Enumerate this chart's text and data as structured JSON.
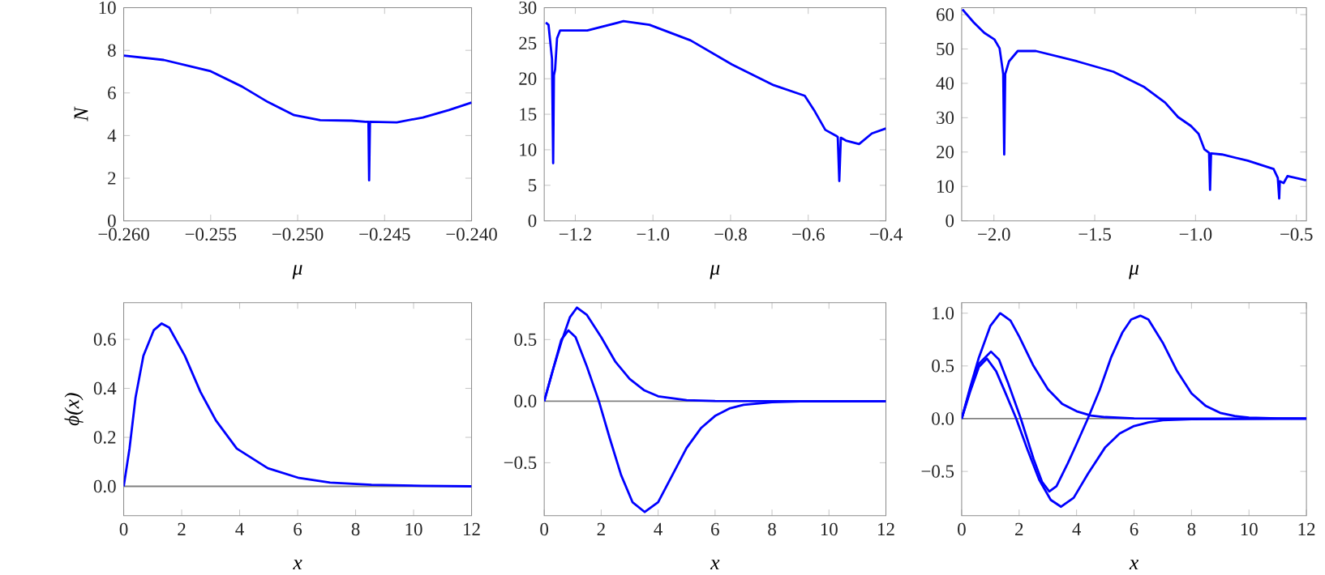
{
  "chart_data": [
    {
      "type": "line",
      "xlabel": "μ",
      "ylabel": "N",
      "xlim": [
        -0.26,
        -0.24
      ],
      "ylim": [
        0,
        10
      ],
      "xticks": [
        {
          "value": -0.26,
          "label": "−0.260"
        },
        {
          "value": -0.255,
          "label": "−0.255"
        },
        {
          "value": -0.25,
          "label": "−0.250"
        },
        {
          "value": -0.245,
          "label": "−0.245"
        },
        {
          "value": -0.24,
          "label": "−0.240"
        }
      ],
      "yticks": [
        0,
        2,
        4,
        6,
        8,
        10
      ],
      "series": [
        {
          "color": "#0000ff",
          "x": [
            -0.26,
            -0.2577,
            -0.255,
            -0.2532,
            -0.2517,
            -0.2502,
            -0.2487,
            -0.2469,
            -0.2461,
            -0.24593,
            -0.24589,
            -0.24584,
            -0.2443,
            -0.2428,
            -0.2413,
            -0.24
          ],
          "values": [
            7.75,
            7.55,
            7.02,
            6.3,
            5.57,
            4.96,
            4.72,
            4.7,
            4.65,
            4.65,
            1.9,
            4.65,
            4.62,
            4.85,
            5.2,
            5.55
          ]
        }
      ]
    },
    {
      "type": "line",
      "xlabel": "μ",
      "xlim": [
        -1.28,
        -0.4
      ],
      "ylim": [
        0,
        30
      ],
      "xticks": [
        {
          "value": -1.2,
          "label": "−1.2"
        },
        {
          "value": -1.0,
          "label": "−1.0"
        },
        {
          "value": -0.8,
          "label": "−0.8"
        },
        {
          "value": -0.6,
          "label": "−0.6"
        },
        {
          "value": -0.4,
          "label": "−0.4"
        }
      ],
      "yticks": [
        0,
        5,
        10,
        15,
        20,
        25,
        30
      ],
      "series": [
        {
          "color": "#0000ff",
          "x": [
            -1.276,
            -1.269,
            -1.26,
            -1.257,
            -1.255,
            -1.252,
            -1.247,
            -1.239,
            -1.169,
            -1.076,
            -1.009,
            -0.903,
            -0.796,
            -0.689,
            -0.609,
            -0.583,
            -0.556,
            -0.529,
            -0.524,
            -0.52,
            -0.516,
            -0.503,
            -0.469,
            -0.436,
            -0.4
          ],
          "values": [
            27.9,
            27.6,
            22.8,
            8.1,
            20.5,
            21.3,
            25.7,
            26.8,
            26.8,
            28.1,
            27.6,
            25.4,
            22.0,
            19.1,
            17.6,
            15.4,
            12.8,
            12.0,
            11.8,
            5.6,
            11.7,
            11.3,
            10.8,
            12.3,
            13.0
          ]
        }
      ]
    },
    {
      "type": "line",
      "xlabel": "μ",
      "xlim": [
        -2.16,
        -0.45
      ],
      "ylim": [
        0,
        62
      ],
      "xticks": [
        {
          "value": -2.0,
          "label": "−2.0"
        },
        {
          "value": -1.5,
          "label": "−1.5"
        },
        {
          "value": -1.0,
          "label": "−1.0"
        },
        {
          "value": -0.5,
          "label": "−0.5"
        }
      ],
      "yticks": [
        0,
        10,
        20,
        30,
        40,
        50,
        60
      ],
      "series": [
        {
          "color": "#0000ff",
          "x": [
            -2.156,
            -2.1,
            -2.048,
            -1.998,
            -1.972,
            -1.959,
            -1.954,
            -1.949,
            -1.944,
            -1.925,
            -1.882,
            -1.792,
            -1.587,
            -1.408,
            -1.254,
            -1.151,
            -1.087,
            -1.023,
            -0.985,
            -0.956,
            -0.933,
            -0.928,
            -0.923,
            -0.869,
            -0.741,
            -0.613,
            -0.592,
            -0.585,
            -0.582,
            -0.563,
            -0.544,
            -0.451
          ],
          "values": [
            61.5,
            57.7,
            54.7,
            52.8,
            50.2,
            44.9,
            42.7,
            19.3,
            42.7,
            46.4,
            49.4,
            49.4,
            46.4,
            43.4,
            38.9,
            34.4,
            30.2,
            27.6,
            25.3,
            20.8,
            19.8,
            9.0,
            19.6,
            19.3,
            17.5,
            15.1,
            12.5,
            6.5,
            11.5,
            11.0,
            13.0,
            11.8
          ]
        }
      ]
    },
    {
      "type": "line",
      "xlabel": "x",
      "ylabel": "ϕ(x)",
      "xlim": [
        0,
        12
      ],
      "ylim": [
        -0.12,
        0.75
      ],
      "xticks": [
        0,
        2,
        4,
        6,
        8,
        10,
        12
      ],
      "yticks": [
        {
          "value": 0,
          "label": "0.0"
        },
        {
          "value": 0.2,
          "label": "0.2"
        },
        {
          "value": 0.4,
          "label": "0.4"
        },
        {
          "value": 0.6,
          "label": "0.6"
        }
      ],
      "ref_lines": [
        {
          "axis": "y",
          "value": 0,
          "color": "#808080"
        }
      ],
      "series": [
        {
          "color": "#0000ff",
          "x": [
            0,
            0.2,
            0.41,
            0.68,
            1.04,
            1.31,
            1.57,
            2.11,
            2.65,
            3.18,
            3.9,
            4.97,
            6.05,
            7.12,
            8.55,
            10.3,
            12
          ],
          "values": [
            0,
            0.154,
            0.364,
            0.533,
            0.638,
            0.665,
            0.648,
            0.533,
            0.385,
            0.269,
            0.154,
            0.074,
            0.034,
            0.015,
            0.006,
            0.002,
            0
          ]
        }
      ]
    },
    {
      "type": "line",
      "xlabel": "x",
      "xlim": [
        0,
        12
      ],
      "ylim": [
        -0.93,
        0.8
      ],
      "xticks": [
        0,
        2,
        4,
        6,
        8,
        10,
        12
      ],
      "yticks": [
        {
          "value": -0.5,
          "label": "−0.5"
        },
        {
          "value": 0,
          "label": "0.0"
        },
        {
          "value": 0.5,
          "label": "0.5"
        }
      ],
      "ref_lines": [
        {
          "axis": "y",
          "value": 0,
          "color": "#808080"
        }
      ],
      "series": [
        {
          "color": "#0000ff",
          "x": [
            0,
            0.3,
            0.6,
            0.9,
            1.15,
            1.5,
            2.0,
            2.5,
            3.0,
            3.5,
            4.0,
            5.0,
            6.0,
            12
          ],
          "values": [
            0,
            0.25,
            0.48,
            0.68,
            0.76,
            0.7,
            0.52,
            0.32,
            0.18,
            0.09,
            0.04,
            0.008,
            0.001,
            0
          ]
        },
        {
          "color": "#0000ff",
          "x": [
            0,
            0.3,
            0.6,
            0.85,
            1.1,
            1.5,
            1.92,
            2.3,
            2.7,
            3.1,
            3.53,
            4.0,
            4.5,
            5.0,
            5.5,
            6.0,
            6.5,
            7,
            8,
            9,
            12
          ],
          "values": [
            0,
            0.25,
            0.5,
            0.575,
            0.52,
            0.28,
            0,
            -0.3,
            -0.6,
            -0.82,
            -0.9,
            -0.82,
            -0.6,
            -0.38,
            -0.22,
            -0.12,
            -0.06,
            -0.03,
            -0.008,
            -0.002,
            0
          ]
        }
      ]
    },
    {
      "type": "line",
      "xlabel": "x",
      "xlim": [
        0,
        12
      ],
      "ylim": [
        -0.92,
        1.1
      ],
      "xticks": [
        0,
        2,
        4,
        6,
        8,
        10,
        12
      ],
      "yticks": [
        {
          "value": -0.5,
          "label": "−0.5"
        },
        {
          "value": 0,
          "label": "0.0"
        },
        {
          "value": 0.5,
          "label": "0.5"
        },
        {
          "value": 1.0,
          "label": "1.0"
        }
      ],
      "ref_lines": [
        {
          "axis": "y",
          "value": 0,
          "color": "#808080"
        }
      ],
      "series": [
        {
          "color": "#0000ff",
          "x": [
            0,
            0.3,
            0.6,
            1.0,
            1.34,
            1.7,
            2.0,
            2.5,
            3.0,
            3.5,
            4.0,
            4.5,
            5,
            6,
            12
          ],
          "values": [
            0,
            0.3,
            0.58,
            0.88,
            1.0,
            0.93,
            0.78,
            0.5,
            0.28,
            0.14,
            0.07,
            0.03,
            0.015,
            0.003,
            0
          ]
        },
        {
          "color": "#0000ff",
          "x": [
            0,
            0.3,
            0.6,
            1.02,
            1.3,
            1.6,
            2.06,
            2.5,
            2.8,
            3.05,
            3.3,
            3.7,
            4.0,
            4.39,
            4.8,
            5.2,
            5.6,
            5.9,
            6.22,
            6.5,
            7.0,
            7.5,
            8.0,
            8.5,
            9,
            9.5,
            10,
            11,
            12
          ],
          "values": [
            0,
            0.28,
            0.52,
            0.636,
            0.56,
            0.35,
            0,
            -0.38,
            -0.6,
            -0.69,
            -0.64,
            -0.42,
            -0.24,
            0,
            0.27,
            0.58,
            0.82,
            0.94,
            0.976,
            0.94,
            0.72,
            0.45,
            0.24,
            0.12,
            0.055,
            0.025,
            0.01,
            0.002,
            0
          ]
        },
        {
          "color": "#0000ff",
          "x": [
            0,
            0.3,
            0.6,
            0.88,
            1.2,
            1.5,
            1.9,
            2.3,
            2.7,
            3.1,
            3.46,
            3.9,
            4.4,
            5.0,
            5.5,
            6,
            6.5,
            7,
            8,
            12
          ],
          "values": [
            0,
            0.26,
            0.49,
            0.57,
            0.45,
            0.26,
            0,
            -0.3,
            -0.58,
            -0.77,
            -0.835,
            -0.75,
            -0.52,
            -0.27,
            -0.14,
            -0.07,
            -0.035,
            -0.015,
            -0.004,
            0
          ]
        }
      ]
    }
  ]
}
